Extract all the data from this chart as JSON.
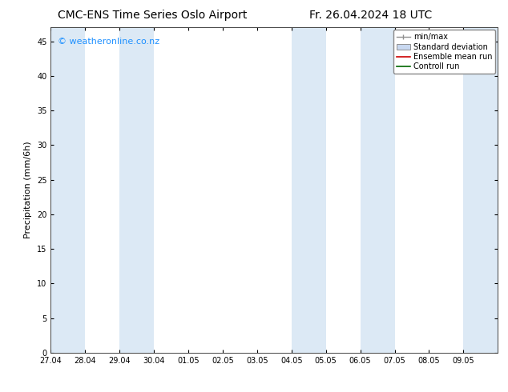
{
  "title_left": "CMC-ENS Time Series Oslo Airport",
  "title_right": "Fr. 26.04.2024 18 UTC",
  "ylabel": "Precipitation (mm/6h)",
  "watermark": "© weatheronline.co.nz",
  "xlim_left": 0,
  "xlim_right": 13,
  "ylim_bottom": 0,
  "ylim_top": 47,
  "yticks": [
    0,
    5,
    10,
    15,
    20,
    25,
    30,
    35,
    40,
    45
  ],
  "xtick_labels": [
    "27.04",
    "28.04",
    "29.04",
    "30.04",
    "01.05",
    "02.05",
    "03.05",
    "04.05",
    "05.05",
    "06.05",
    "07.05",
    "08.05",
    "09.05"
  ],
  "shaded_bands": [
    {
      "x_start": 0.0,
      "x_end": 1.0
    },
    {
      "x_start": 2.0,
      "x_end": 3.0
    },
    {
      "x_start": 7.0,
      "x_end": 8.0
    },
    {
      "x_start": 9.0,
      "x_end": 10.0
    },
    {
      "x_start": 12.0,
      "x_end": 13.0
    }
  ],
  "legend_items": [
    {
      "label": "min/max",
      "color": "#a0a0a0",
      "type": "errorbar"
    },
    {
      "label": "Standard deviation",
      "color": "#b0c4de",
      "type": "box"
    },
    {
      "label": "Ensemble mean run",
      "color": "#ff0000",
      "type": "line"
    },
    {
      "label": "Controll run",
      "color": "#008000",
      "type": "line"
    }
  ],
  "background_color": "#ffffff",
  "plot_bg_color": "#ffffff",
  "band_color": "#dce9f5",
  "title_fontsize": 10,
  "tick_label_fontsize": 7,
  "ylabel_fontsize": 8,
  "watermark_color": "#1e90ff",
  "watermark_fontsize": 8,
  "legend_fontsize": 7
}
